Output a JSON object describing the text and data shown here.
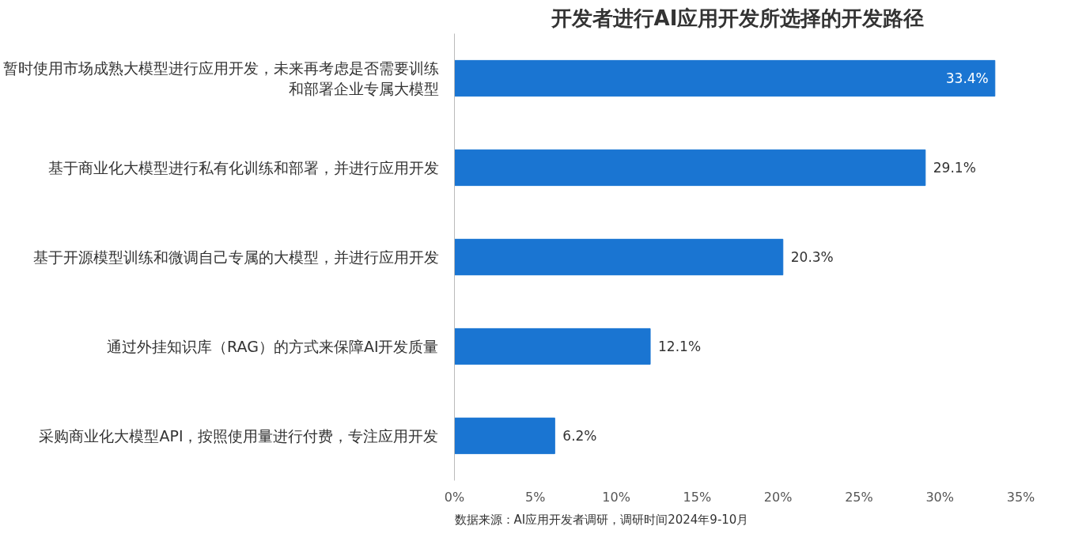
{
  "chart_data": {
    "type": "bar",
    "orientation": "horizontal",
    "title": "开发者进行AI应用开发所选择的开发路径",
    "categories": [
      "暂时使用市场成熟大模型进行应用开发，未来再考虑是否需要训练和部署企业专属大模型",
      "基于商业化大模型进行私有化训练和部署，并进行应用开发",
      "基于开源模型训练和微调自己专属的大模型，并进行应用开发",
      "通过外挂知识库（RAG）的方式来保障AI开发质量",
      "采购商业化大模型API，按照使用量进行付费，专注应用开发"
    ],
    "values": [
      33.4,
      29.1,
      20.3,
      12.1,
      6.2
    ],
    "value_labels": [
      "33.4%",
      "29.1%",
      "20.3%",
      "12.1%",
      "6.2%"
    ],
    "color": "#1a75d2",
    "xlim": [
      0,
      35
    ],
    "xticks": [
      {
        "value": 0,
        "label": "0%"
      },
      {
        "value": 5,
        "label": "5%"
      },
      {
        "value": 10,
        "label": "10%"
      },
      {
        "value": 15,
        "label": "15%"
      },
      {
        "value": 20,
        "label": "20%"
      },
      {
        "value": 25,
        "label": "25%"
      },
      {
        "value": 30,
        "label": "30%"
      },
      {
        "value": 35,
        "label": "35%"
      }
    ],
    "grid": false,
    "annotations": [
      "数据来源：AI应用开发者调研，调研时间2024年9-10月"
    ]
  }
}
